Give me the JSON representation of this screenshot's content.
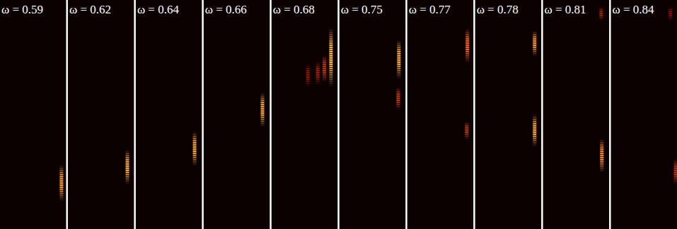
{
  "chart_data": [
    {
      "type": "heatmap",
      "title": "ω = 0.59",
      "xlim": [
        0,
        1
      ],
      "ylim": [
        0,
        1
      ],
      "zlim": [
        0,
        1
      ],
      "tick_labels": false,
      "spots": {
        "x": [
          0.93
        ],
        "y": [
          0.2
        ],
        "height": [
          0.16
        ],
        "intensity": [
          0.85
        ]
      }
    },
    {
      "type": "heatmap",
      "title": "ω = 0.62",
      "xlim": [
        0,
        1
      ],
      "ylim": [
        0,
        1
      ],
      "zlim": [
        0,
        1
      ],
      "tick_labels": false,
      "spots": {
        "x": [
          0.9
        ],
        "y": [
          0.27
        ],
        "height": [
          0.15
        ],
        "intensity": [
          0.9
        ]
      }
    },
    {
      "type": "heatmap",
      "title": "ω = 0.64",
      "xlim": [
        0,
        1
      ],
      "ylim": [
        0,
        1
      ],
      "zlim": [
        0,
        1
      ],
      "tick_labels": false,
      "spots": {
        "x": [
          0.89
        ],
        "y": [
          0.35
        ],
        "height": [
          0.15
        ],
        "intensity": [
          0.9
        ]
      }
    },
    {
      "type": "heatmap",
      "title": "ω = 0.66",
      "xlim": [
        0,
        1
      ],
      "ylim": [
        0,
        1
      ],
      "zlim": [
        0,
        1
      ],
      "tick_labels": false,
      "spots": {
        "x": [
          0.89
        ],
        "y": [
          0.52
        ],
        "height": [
          0.15
        ],
        "intensity": [
          0.9
        ]
      }
    },
    {
      "type": "heatmap",
      "title": "ω = 0.68",
      "xlim": [
        0,
        1
      ],
      "ylim": [
        0,
        1
      ],
      "zlim": [
        0,
        1
      ],
      "tick_labels": false,
      "spots": {
        "x": [
          0.9,
          0.55,
          0.7,
          0.8
        ],
        "y": [
          0.75,
          0.67,
          0.68,
          0.7
        ],
        "height": [
          0.26,
          0.1,
          0.1,
          0.12
        ],
        "intensity": [
          0.95,
          0.35,
          0.4,
          0.5
        ]
      }
    },
    {
      "type": "heatmap",
      "title": "ω = 0.75",
      "xlim": [
        0,
        1
      ],
      "ylim": [
        0,
        1
      ],
      "zlim": [
        0,
        1
      ],
      "tick_labels": false,
      "spots": {
        "x": [
          0.9,
          0.89
        ],
        "y": [
          0.74,
          0.57
        ],
        "height": [
          0.17,
          0.1
        ],
        "intensity": [
          0.9,
          0.5
        ]
      }
    },
    {
      "type": "heatmap",
      "title": "ω = 0.77",
      "xlim": [
        0,
        1
      ],
      "ylim": [
        0,
        1
      ],
      "zlim": [
        0,
        1
      ],
      "tick_labels": false,
      "spots": {
        "x": [
          0.91,
          0.9
        ],
        "y": [
          0.8,
          0.43
        ],
        "height": [
          0.15,
          0.08
        ],
        "intensity": [
          0.7,
          0.5
        ]
      }
    },
    {
      "type": "heatmap",
      "title": "ω = 0.78",
      "xlim": [
        0,
        1
      ],
      "ylim": [
        0,
        1
      ],
      "zlim": [
        0,
        1
      ],
      "tick_labels": false,
      "spots": {
        "x": [
          0.9,
          0.9
        ],
        "y": [
          0.81,
          0.43
        ],
        "height": [
          0.11,
          0.14
        ],
        "intensity": [
          0.85,
          0.9
        ]
      }
    },
    {
      "type": "heatmap",
      "title": "ω = 0.81",
      "xlim": [
        0,
        1
      ],
      "ylim": [
        0,
        1
      ],
      "zlim": [
        0,
        1
      ],
      "tick_labels": false,
      "spots": {
        "x": [
          0.88,
          0.89
        ],
        "y": [
          0.94,
          0.32
        ],
        "height": [
          0.06,
          0.15
        ],
        "intensity": [
          0.4,
          0.8
        ]
      }
    },
    {
      "type": "heatmap",
      "title": "ω = 0.84",
      "xlim": [
        0,
        1
      ],
      "ylim": [
        0,
        1
      ],
      "zlim": [
        0,
        1
      ],
      "tick_labels": false,
      "spots": {
        "x": [
          0.98,
          0.9
        ],
        "y": [
          0.25,
          0.94
        ],
        "height": [
          0.11,
          0.06
        ],
        "intensity": [
          0.5,
          0.3
        ]
      }
    }
  ]
}
